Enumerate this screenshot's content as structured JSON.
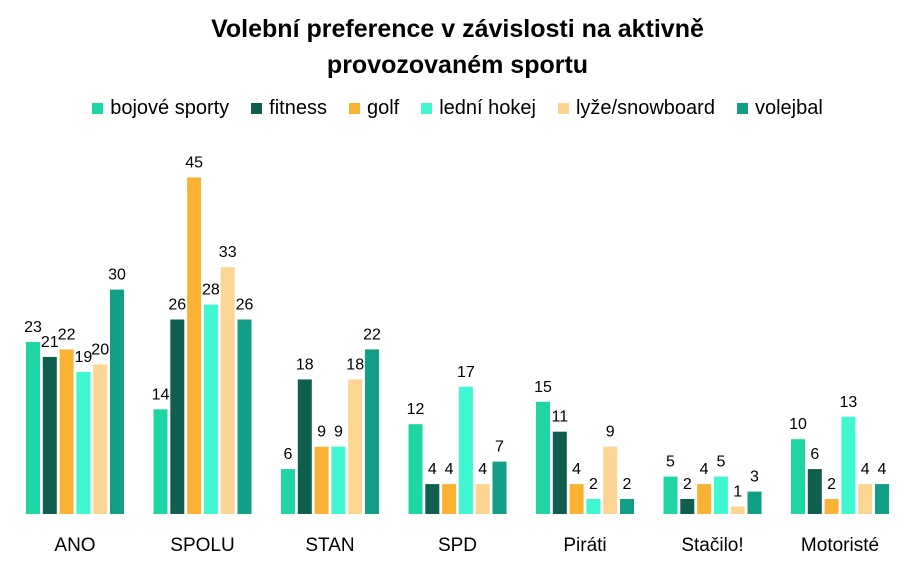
{
  "chart_data": {
    "type": "bar",
    "title_line1": "Volební preference v závislosti na aktivně",
    "title_line2": "provozovaném sportu",
    "xlabel": "",
    "ylabel": "",
    "ylim": [
      0,
      45
    ],
    "grid": false,
    "legend_position": "top",
    "categories": [
      "ANO",
      "SPOLU",
      "STAN",
      "SPD",
      "Piráti",
      "Stačilo!",
      "Motoristé"
    ],
    "series": [
      {
        "name": "bojové sporty",
        "color": "#1ED5A6",
        "values": [
          23,
          14,
          6,
          12,
          15,
          5,
          10
        ]
      },
      {
        "name": "fitness",
        "color": "#0F5E4E",
        "values": [
          21,
          26,
          18,
          4,
          11,
          2,
          6
        ]
      },
      {
        "name": "golf",
        "color": "#F9B234",
        "values": [
          22,
          45,
          9,
          4,
          4,
          4,
          2
        ]
      },
      {
        "name": "lední hokej",
        "color": "#3FF7D0",
        "values": [
          19,
          28,
          9,
          17,
          2,
          5,
          13
        ]
      },
      {
        "name": "lyže/snowboard",
        "color": "#FBD592",
        "values": [
          20,
          33,
          18,
          4,
          9,
          1,
          4
        ]
      },
      {
        "name": "volejbal",
        "color": "#139E86",
        "values": [
          30,
          26,
          22,
          7,
          2,
          3,
          4
        ]
      }
    ]
  }
}
